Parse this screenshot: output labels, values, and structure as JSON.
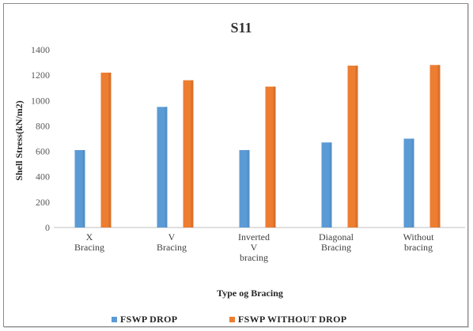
{
  "colors": {
    "series1": "#5b9bd5",
    "series1_dark": "#4a86c0",
    "series2": "#ed7d31",
    "series2_dark": "#c9661f",
    "grid": "#d9d9d9",
    "axis": "#bfbfbf"
  },
  "chart_data": {
    "type": "bar",
    "title": "S11",
    "xlabel": "Type og Bracing",
    "ylabel": "Shell Stress(kN/m2)",
    "ylim": [
      0,
      1400
    ],
    "yticks": [
      "0",
      "200",
      "400",
      "600",
      "800",
      "1000",
      "1200",
      "1400"
    ],
    "grid": false,
    "legend_position": "bottom",
    "categories": [
      [
        "X",
        "Bracing"
      ],
      [
        "V",
        "Bracing"
      ],
      [
        "Inverted",
        "V",
        "bracing"
      ],
      [
        "Diagonal",
        "Bracing"
      ],
      [
        "Without",
        "bracing"
      ]
    ],
    "series": [
      {
        "name": "FSWP DROP",
        "values": [
          610,
          950,
          610,
          670,
          700
        ]
      },
      {
        "name": "FSWP WITHOUT DROP",
        "values": [
          1220,
          1160,
          1110,
          1275,
          1280
        ]
      }
    ]
  }
}
